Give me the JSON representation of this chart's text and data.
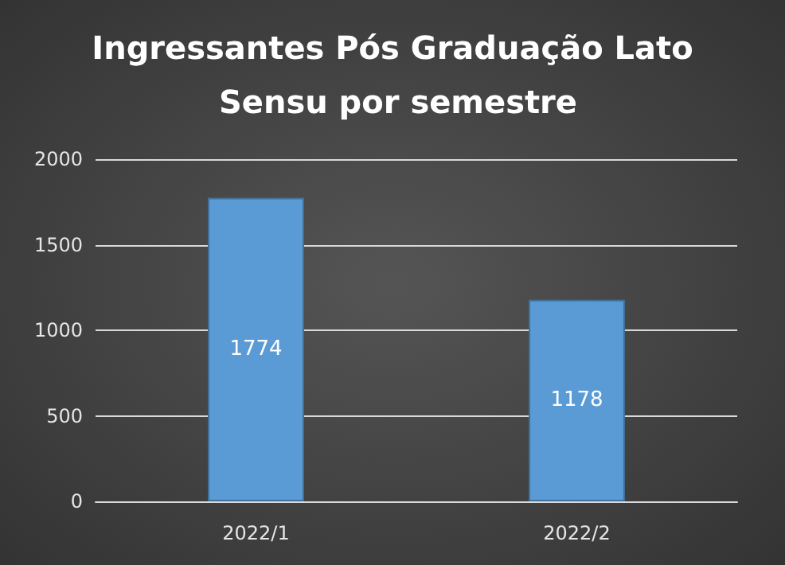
{
  "chart_data": {
    "type": "bar",
    "title": "Ingressantes Pós Graduação Lato Sensu por semestre",
    "categories": [
      "2022/1",
      "2022/2"
    ],
    "values": [
      1774,
      1178
    ],
    "color": "#5b9bd5",
    "ylim": [
      0,
      2000
    ],
    "yticks": [
      0,
      500,
      1000,
      1500,
      2000
    ],
    "grid": true,
    "data_labels": true
  }
}
